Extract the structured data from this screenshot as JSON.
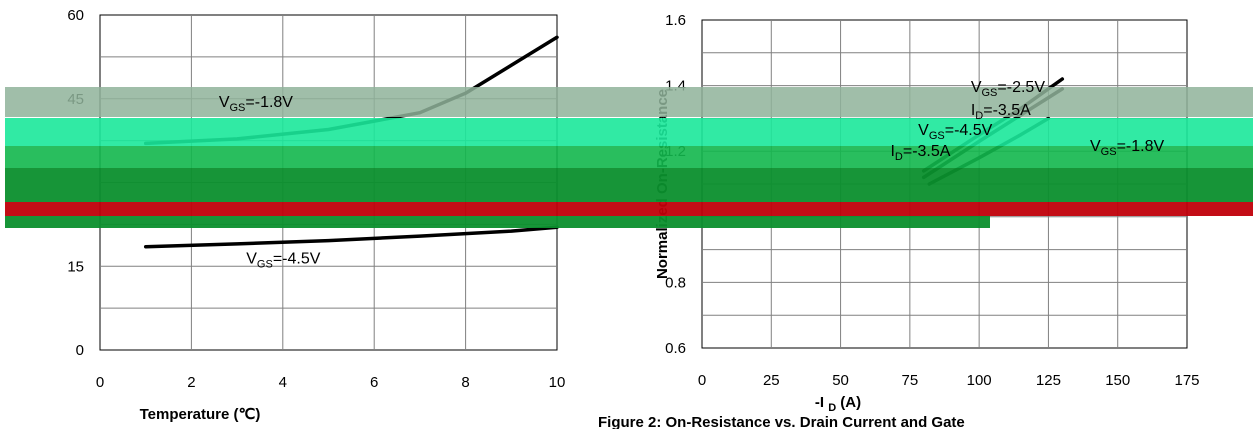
{
  "chart_data": [
    {
      "type": "line",
      "title": "",
      "xlabel": "Temperature (℃)",
      "ylabel": "",
      "xlim": [
        0,
        10
      ],
      "ylim": [
        0,
        60
      ],
      "x_ticks": [
        "0",
        "2",
        "4",
        "6",
        "8",
        "10"
      ],
      "y_ticks": [
        "0",
        "15",
        "45",
        "60"
      ],
      "grid": true,
      "series": [
        {
          "x": [
            1,
            3,
            5,
            7,
            8,
            9,
            10
          ],
          "y": [
            37,
            37.8,
            39.5,
            42.5,
            46,
            51,
            56
          ]
        },
        {
          "x": [
            1,
            3,
            5,
            7,
            9,
            10
          ],
          "y": [
            18.5,
            19,
            19.6,
            20.4,
            21.3,
            22
          ]
        }
      ],
      "annotations": [
        {
          "text": "V_GS=-1.8V",
          "x": 2.6,
          "y": 43.5
        },
        {
          "text": "V_GS=-4.5V",
          "x": 3.2,
          "y": 15.5
        }
      ]
    },
    {
      "type": "line",
      "title": "",
      "xlabel": "-I_D (A)",
      "ylabel": "Normalized On-Resistance",
      "xlim": [
        0,
        175
      ],
      "ylim": [
        0.6,
        1.6
      ],
      "x_ticks": [
        "0",
        "25",
        "50",
        "75",
        "100",
        "125",
        "150",
        "175"
      ],
      "y_ticks": [
        "0.6",
        "0.8",
        "1.2",
        "1.4",
        "1.6"
      ],
      "grid": true,
      "series": [
        {
          "x": [
            80,
            100,
            115,
            130
          ],
          "y": [
            1.14,
            1.25,
            1.33,
            1.42
          ]
        },
        {
          "x": [
            80,
            100,
            115,
            130
          ],
          "y": [
            1.12,
            1.23,
            1.31,
            1.39
          ]
        },
        {
          "x": [
            82,
            100,
            115,
            125
          ],
          "y": [
            1.1,
            1.18,
            1.25,
            1.3
          ]
        }
      ],
      "annotations": [
        {
          "text": "V_GS=-2.5V",
          "x": 97,
          "y": 1.38
        },
        {
          "text": "I_D=-3.5A",
          "x": 97,
          "y": 1.31
        },
        {
          "text": "V_GS=-4.5V",
          "x": 78,
          "y": 1.25
        },
        {
          "text": "I_D=-3.5A",
          "x": 68,
          "y": 1.185
        },
        {
          "text": "V_GS=-1.8V",
          "x": 140,
          "y": 1.2
        }
      ]
    }
  ],
  "captions": [
    "Figure 2: On-Resistance vs. Drain Current and Gate"
  ]
}
